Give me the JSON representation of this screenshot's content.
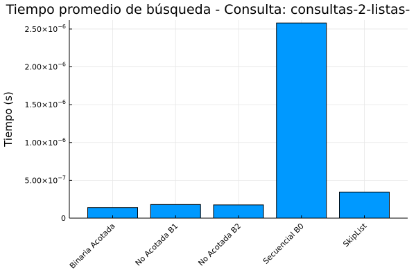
{
  "chart_data": {
    "type": "bar",
    "title": "Tiempo promedio de búsqueda - Consulta: consultas-2-listas-",
    "xlabel": "",
    "ylabel": "Tiempo (s)",
    "categories": [
      "Binaria Acotada",
      "No Acotada B1",
      "No Acotada B2",
      "Secuencial B0",
      "SkipList"
    ],
    "values": [
      1.4e-07,
      1.8e-07,
      1.75e-07,
      2.58e-06,
      3.45e-07
    ],
    "ylim": [
      0,
      2.6e-06
    ],
    "yticks": [
      {
        "value": 0,
        "mantissa": "0",
        "exponent": ""
      },
      {
        "value": 5e-07,
        "mantissa": "5.00×10",
        "exponent": "−7"
      },
      {
        "value": 1e-06,
        "mantissa": "1.00×10",
        "exponent": "−6"
      },
      {
        "value": 1.5e-06,
        "mantissa": "1.50×10",
        "exponent": "−6"
      },
      {
        "value": 2e-06,
        "mantissa": "2.00×10",
        "exponent": "−6"
      },
      {
        "value": 2.5e-06,
        "mantissa": "2.50×10",
        "exponent": "−6"
      }
    ],
    "bar_color": "#0099ff",
    "grid": true,
    "legend": "none"
  }
}
